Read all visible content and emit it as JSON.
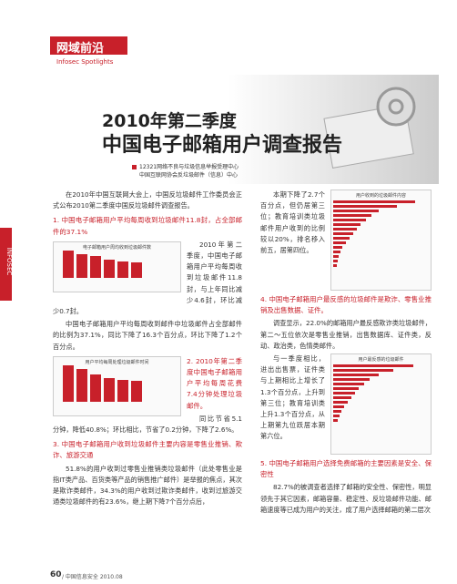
{
  "header": {
    "section": "网域前沿",
    "section_en": "Infosec Spotlights",
    "side_tab": "INFOSEC"
  },
  "title": {
    "line1": "2010年第二季度",
    "line2": "中国电子邮箱用户调查报告"
  },
  "authors": [
    "12321网络不良与垃圾信息举报受理中心",
    "中国互联网协会反垃圾邮件（信息）中心"
  ],
  "left_column": {
    "intro": "在2010年中国互联网大会上，中国反垃圾邮件工作委员会正式公布2010第二季度中国反垃圾邮件调查报告。",
    "s1_heading": "1. 中国电子邮箱用户平均每周收到垃圾邮件11.8封，占全部邮件的37.1%",
    "s1_p1": "2010年第二季度，中国电子邮箱用户平均每周收到垃圾邮件11.8封，与上年同比减少4.6封，环比减少0.7封。",
    "s1_p2": "中国电子邮箱用户平均每周收到邮件中垃圾邮件占全部邮件的比例为37.1%，同比下降了16.3个百分点，环比下降了1.2个百分点。",
    "s2_heading": "2. 2010年第二季度中国电子邮箱用户平均每周花费7.4分钟处理垃圾邮件。",
    "s2_p1": "同比节省5.1分钟，降低40.8%；环比相比，节省了0.2分钟，下降了2.6%。",
    "s3_heading": "3. 中国电子邮箱用户收到垃圾邮件主要内容是零售业推销、欺诈、旅游交通",
    "s3_p1": "51.8%的用户收到过零售业推销类垃圾邮件（此处零售业是指IT类产品、百货类等产品的销售推广邮件）是举报的焦点，其次是欺诈类邮件，34.3%的用户收到过欺诈类邮件，收到过旅游交通类垃圾邮件的有23.6%，继上期下降7个百分点后，",
    "chart1_title": "电子邮箱用户周均收到垃圾邮件数",
    "chart2_title": "用户平均每周处理垃圾邮件时间"
  },
  "right_column": {
    "p1": "本期下降了2.7个百分点，但仍居第三位；教育培训类垃圾邮件用户收到的比例较以20%，排名移入前五，居第四位。",
    "s4_heading": "4. 中国电子邮箱用户最反感的垃圾邮件是欺诈、零售业推销及出售数据、证件。",
    "s4_p1": "调查显示，22.0%的邮箱用户最反感欺诈类垃圾邮件，第二～五位依次是零售业推销，出售数据库、证件类，反动、政治类，色情类邮件。",
    "s4_p2": "与一季度相比，进出出售票，证件类与上期相比上增长了1.3个百分点，上升到第三位；教育培训类上升1.3个百分点，从上期第九位跃居本期第六位。",
    "s5_heading": "5. 中国电子邮箱用户选择免费邮箱的主要因素是安全、保密性",
    "s5_p1": "82.7%的被调查者选择了邮箱的安全性、保密性，明显领先于其它因素，邮箱容量、稳定性、反垃圾邮件功能、邮箱速度等已成为用户的关注，成了用户选择邮箱的第二层次",
    "chart3_title": "用户收到的垃圾邮件内容",
    "chart4_title": "用户最反感的垃圾邮件"
  },
  "footer": {
    "page": "60",
    "magazine": "/ 中国信息安全 2010.08"
  }
}
